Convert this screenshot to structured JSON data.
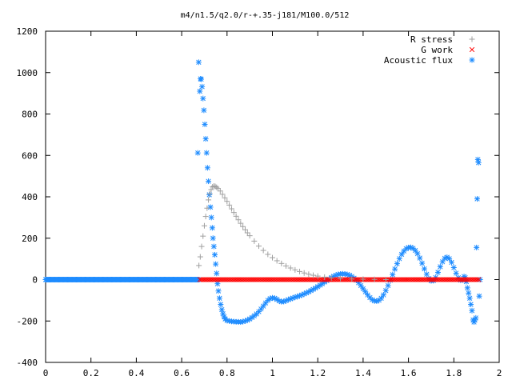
{
  "chart_data": {
    "type": "scatter",
    "title": "m4/n1.5/q2.0/r-+.35-j181/M100.0/512",
    "xlabel": "",
    "ylabel": "",
    "xlim": [
      0,
      2
    ],
    "ylim": [
      -400,
      1200
    ],
    "xticks": [
      0,
      0.2,
      0.4,
      0.6,
      0.8,
      1,
      1.2,
      1.4,
      1.6,
      1.8,
      2
    ],
    "xtick_labels": [
      "0",
      "0.2",
      "0.4",
      "0.6",
      "0.8",
      "1",
      "1.2",
      "1.4",
      "1.6",
      "1.8",
      "2"
    ],
    "yticks": [
      -400,
      -200,
      0,
      200,
      400,
      600,
      800,
      1000,
      1200
    ],
    "ytick_labels": [
      "-400",
      "-200",
      "0",
      "200",
      "400",
      "600",
      "800",
      "1000",
      "1200"
    ],
    "grid": false,
    "legend_position": "top-right",
    "series": [
      {
        "name": "R stress",
        "color": "#a0a0a0",
        "marker": "plus",
        "points": [
          [
            0.676,
            68
          ],
          [
            0.682,
            110
          ],
          [
            0.688,
            160
          ],
          [
            0.694,
            210
          ],
          [
            0.7,
            260
          ],
          [
            0.706,
            305
          ],
          [
            0.712,
            345
          ],
          [
            0.718,
            385
          ],
          [
            0.724,
            415
          ],
          [
            0.73,
            435
          ],
          [
            0.736,
            448
          ],
          [
            0.742,
            452
          ],
          [
            0.748,
            450
          ],
          [
            0.754,
            446
          ],
          [
            0.76,
            440
          ],
          [
            0.77,
            428
          ],
          [
            0.78,
            412
          ],
          [
            0.79,
            395
          ],
          [
            0.8,
            378
          ],
          [
            0.81,
            360
          ],
          [
            0.82,
            342
          ],
          [
            0.83,
            324
          ],
          [
            0.84,
            306
          ],
          [
            0.85,
            289
          ],
          [
            0.86,
            272
          ],
          [
            0.87,
            256
          ],
          [
            0.88,
            241
          ],
          [
            0.89,
            226
          ],
          [
            0.9,
            212
          ],
          [
            0.92,
            186
          ],
          [
            0.94,
            162
          ],
          [
            0.96,
            141
          ],
          [
            0.98,
            122
          ],
          [
            1.0,
            106
          ],
          [
            1.02,
            91
          ],
          [
            1.04,
            78
          ],
          [
            1.06,
            66
          ],
          [
            1.08,
            56
          ],
          [
            1.1,
            47
          ],
          [
            1.12,
            39
          ],
          [
            1.14,
            32
          ],
          [
            1.16,
            26
          ],
          [
            1.18,
            21
          ],
          [
            1.2,
            17
          ],
          [
            1.23,
            12
          ],
          [
            1.26,
            8
          ],
          [
            1.3,
            5
          ],
          [
            1.35,
            3
          ],
          [
            1.4,
            2
          ],
          [
            1.45,
            1
          ],
          [
            1.5,
            0
          ]
        ]
      },
      {
        "name": "G work",
        "color": "#ff0000",
        "marker": "cross",
        "x_range": [
          0.68,
          1.91
        ],
        "y_constant": 0,
        "count": 180
      },
      {
        "name": "Acoustic flux",
        "color": "#1e8cff",
        "marker": "star",
        "baseline": {
          "x_range": [
            0,
            0.675
          ],
          "y": 0,
          "count": 175
        },
        "points": [
          [
            0.671,
            612
          ],
          [
            0.675,
            1050
          ],
          [
            0.68,
            910
          ],
          [
            0.683,
            970
          ],
          [
            0.686,
            968
          ],
          [
            0.69,
            932
          ],
          [
            0.694,
            875
          ],
          [
            0.698,
            818
          ],
          [
            0.702,
            750
          ],
          [
            0.706,
            680
          ],
          [
            0.71,
            612
          ],
          [
            0.714,
            540
          ],
          [
            0.718,
            475
          ],
          [
            0.722,
            410
          ],
          [
            0.727,
            350
          ],
          [
            0.731,
            300
          ],
          [
            0.735,
            250
          ],
          [
            0.738,
            200
          ],
          [
            0.742,
            160
          ],
          [
            0.746,
            120
          ],
          [
            0.75,
            75
          ],
          [
            0.754,
            30
          ],
          [
            0.758,
            -20
          ],
          [
            0.762,
            -55
          ],
          [
            0.767,
            -90
          ],
          [
            0.772,
            -120
          ],
          [
            0.777,
            -145
          ],
          [
            0.782,
            -165
          ],
          [
            0.787,
            -180
          ],
          [
            0.792,
            -190
          ],
          [
            0.8,
            -198
          ],
          [
            0.81,
            -200
          ],
          [
            0.82,
            -202
          ],
          [
            0.83,
            -203
          ],
          [
            0.84,
            -204
          ],
          [
            0.85,
            -204
          ],
          [
            0.86,
            -205
          ],
          [
            0.87,
            -203
          ],
          [
            0.88,
            -200
          ],
          [
            0.89,
            -196
          ],
          [
            0.9,
            -190
          ],
          [
            0.91,
            -183
          ],
          [
            0.92,
            -175
          ],
          [
            0.93,
            -166
          ],
          [
            0.94,
            -155
          ],
          [
            0.95,
            -142
          ],
          [
            0.96,
            -128
          ],
          [
            0.97,
            -113
          ],
          [
            0.98,
            -100
          ],
          [
            0.99,
            -92
          ],
          [
            1.0,
            -88
          ],
          [
            1.01,
            -90
          ],
          [
            1.02,
            -96
          ],
          [
            1.03,
            -103
          ],
          [
            1.04,
            -107
          ],
          [
            1.05,
            -106
          ],
          [
            1.06,
            -102
          ],
          [
            1.07,
            -97
          ],
          [
            1.08,
            -93
          ],
          [
            1.09,
            -89
          ],
          [
            1.1,
            -85
          ],
          [
            1.11,
            -82
          ],
          [
            1.12,
            -78
          ],
          [
            1.13,
            -74
          ],
          [
            1.14,
            -69
          ],
          [
            1.15,
            -64
          ],
          [
            1.16,
            -59
          ],
          [
            1.17,
            -53
          ],
          [
            1.18,
            -47
          ],
          [
            1.19,
            -41
          ],
          [
            1.2,
            -34
          ],
          [
            1.21,
            -27
          ],
          [
            1.22,
            -20
          ],
          [
            1.23,
            -12
          ],
          [
            1.24,
            -5
          ],
          [
            1.25,
            3
          ],
          [
            1.26,
            10
          ],
          [
            1.27,
            16
          ],
          [
            1.28,
            21
          ],
          [
            1.29,
            25
          ],
          [
            1.3,
            27
          ],
          [
            1.31,
            28
          ],
          [
            1.32,
            27
          ],
          [
            1.33,
            25
          ],
          [
            1.34,
            21
          ],
          [
            1.35,
            15
          ],
          [
            1.36,
            7
          ],
          [
            1.37,
            -3
          ],
          [
            1.38,
            -15
          ],
          [
            1.39,
            -29
          ],
          [
            1.4,
            -44
          ],
          [
            1.41,
            -59
          ],
          [
            1.42,
            -74
          ],
          [
            1.43,
            -87
          ],
          [
            1.44,
            -97
          ],
          [
            1.45,
            -103
          ],
          [
            1.46,
            -104
          ],
          [
            1.47,
            -100
          ],
          [
            1.48,
            -90
          ],
          [
            1.49,
            -74
          ],
          [
            1.5,
            -53
          ],
          [
            1.51,
            -29
          ],
          [
            1.52,
            -3
          ],
          [
            1.53,
            24
          ],
          [
            1.54,
            51
          ],
          [
            1.55,
            77
          ],
          [
            1.56,
            101
          ],
          [
            1.57,
            122
          ],
          [
            1.58,
            138
          ],
          [
            1.59,
            149
          ],
          [
            1.6,
            155
          ],
          [
            1.61,
            156
          ],
          [
            1.62,
            151
          ],
          [
            1.63,
            141
          ],
          [
            1.64,
            125
          ],
          [
            1.65,
            104
          ],
          [
            1.66,
            79
          ],
          [
            1.67,
            52
          ],
          [
            1.68,
            26
          ],
          [
            1.69,
            5
          ],
          [
            1.7,
            -6
          ],
          [
            1.71,
            -5
          ],
          [
            1.72,
            10
          ],
          [
            1.73,
            35
          ],
          [
            1.74,
            62
          ],
          [
            1.75,
            86
          ],
          [
            1.76,
            103
          ],
          [
            1.77,
            108
          ],
          [
            1.78,
            101
          ],
          [
            1.79,
            83
          ],
          [
            1.8,
            58
          ],
          [
            1.81,
            31
          ],
          [
            1.82,
            9
          ],
          [
            1.83,
            -3
          ],
          [
            1.84,
            -2
          ],
          [
            1.845,
            15
          ],
          [
            1.85,
            10
          ],
          [
            1.855,
            -10
          ],
          [
            1.86,
            -40
          ],
          [
            1.865,
            -65
          ],
          [
            1.87,
            -90
          ],
          [
            1.875,
            -120
          ],
          [
            1.88,
            -150
          ],
          [
            1.885,
            -195
          ],
          [
            1.889,
            -205
          ],
          [
            1.893,
            -195
          ],
          [
            1.897,
            -185
          ],
          [
            1.9,
            155
          ],
          [
            1.903,
            390
          ],
          [
            1.906,
            580
          ],
          [
            1.909,
            565
          ],
          [
            1.912,
            -80
          ],
          [
            1.916,
            0
          ]
        ]
      }
    ]
  }
}
